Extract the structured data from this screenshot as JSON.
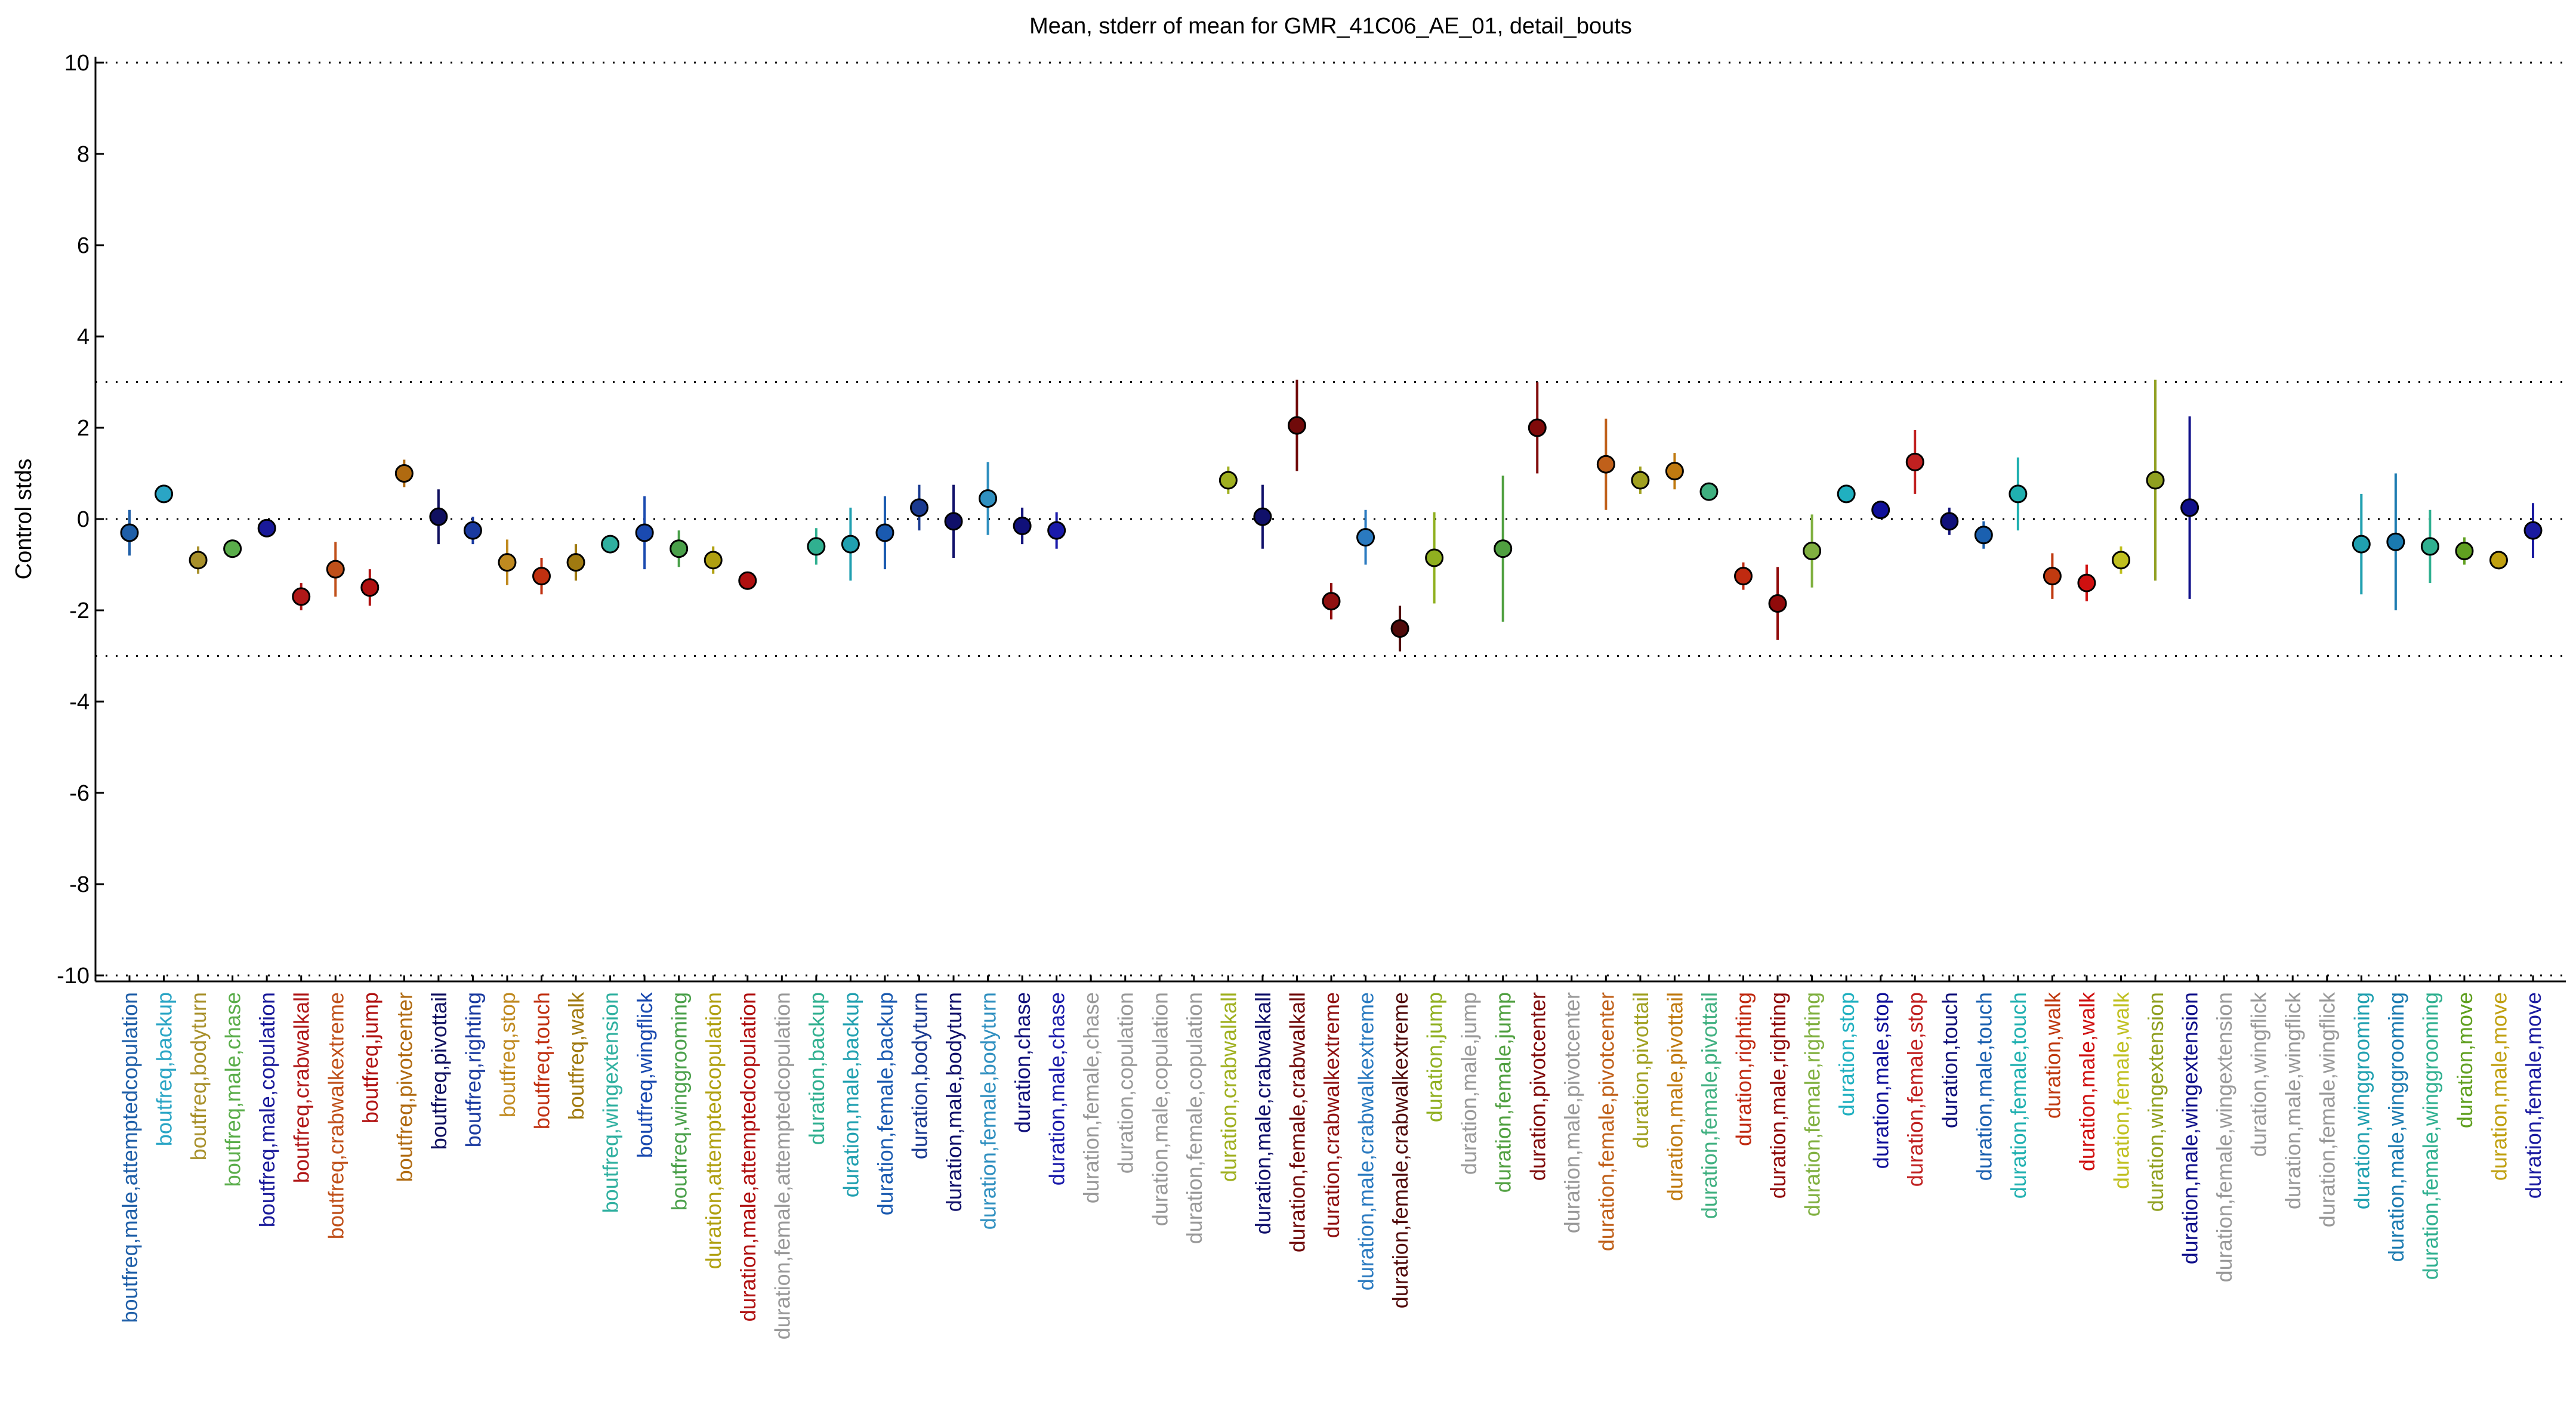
{
  "chart_data": {
    "type": "errorbar",
    "title": "Mean, stderr of mean for GMR_41C06_AE_01, detail_bouts",
    "ylabel": "Control stds",
    "ylim": [
      -10,
      10
    ],
    "yticks": [
      -10,
      -8,
      -6,
      -4,
      -2,
      0,
      2,
      4,
      6,
      8,
      10
    ],
    "reference_lines": [
      -10,
      -3,
      0,
      3,
      10
    ],
    "categories": [
      "boutfreq,male,attemptedcopulation",
      "boutfreq,backup",
      "boutfreq,bodyturn",
      "boutfreq,male,chase",
      "boutfreq,male,copulation",
      "boutfreq,crabwalkall",
      "boutfreq,crabwalkextreme",
      "boutfreq,jump",
      "boutfreq,pivotcenter",
      "boutfreq,pivottail",
      "boutfreq,righting",
      "boutfreq,stop",
      "boutfreq,touch",
      "boutfreq,walk",
      "boutfreq,wingextension",
      "boutfreq,wingflick",
      "boutfreq,winggrooming",
      "duration,attemptedcopulation",
      "duration,male,attemptedcopulation",
      "duration,female,attemptedcopulation",
      "duration,backup",
      "duration,male,backup",
      "duration,female,backup",
      "duration,bodyturn",
      "duration,male,bodyturn",
      "duration,female,bodyturn",
      "duration,chase",
      "duration,male,chase",
      "duration,female,chase",
      "duration,copulation",
      "duration,male,copulation",
      "duration,female,copulation",
      "duration,crabwalkall",
      "duration,male,crabwalkall",
      "duration,female,crabwalkall",
      "duration,crabwalkextreme",
      "duration,male,crabwalkextreme",
      "duration,female,crabwalkextreme",
      "duration,jump",
      "duration,male,jump",
      "duration,female,jump",
      "duration,pivotcenter",
      "duration,male,pivotcenter",
      "duration,female,pivotcenter",
      "duration,pivottail",
      "duration,male,pivottail",
      "duration,female,pivottail",
      "duration,righting",
      "duration,male,righting",
      "duration,female,righting",
      "duration,stop",
      "duration,male,stop",
      "duration,female,stop",
      "duration,touch",
      "duration,male,touch",
      "duration,female,touch",
      "duration,walk",
      "duration,male,walk",
      "duration,female,walk",
      "duration,wingextension",
      "duration,male,wingextension",
      "duration,female,wingextension",
      "duration,wingflick",
      "duration,male,wingflick",
      "duration,female,wingflick",
      "duration,winggrooming",
      "duration,male,winggrooming",
      "duration,female,winggrooming",
      "duration,move",
      "duration,male,move",
      "duration,female,move"
    ],
    "values": [
      -0.3,
      0.55,
      -0.9,
      -0.65,
      -0.2,
      -1.7,
      -1.1,
      -1.5,
      1.0,
      0.05,
      -0.25,
      -0.95,
      -1.25,
      -0.95,
      -0.55,
      -0.3,
      -0.65,
      -0.9,
      -1.35,
      null,
      -0.6,
      -0.55,
      -0.3,
      0.25,
      -0.05,
      0.45,
      -0.15,
      -0.25,
      null,
      null,
      null,
      null,
      0.85,
      0.05,
      2.05,
      -1.8,
      -0.4,
      -2.4,
      -0.85,
      null,
      -0.65,
      2.0,
      null,
      1.2,
      0.85,
      1.05,
      0.6,
      -1.25,
      -1.85,
      -0.7,
      0.55,
      0.2,
      1.25,
      -0.05,
      -0.35,
      0.55,
      -1.25,
      -1.4,
      -0.9,
      0.85,
      0.25,
      null,
      null,
      null,
      null,
      -0.55,
      -0.5,
      -0.6,
      -0.7,
      -0.9,
      -0.25
    ],
    "errors": [
      0.5,
      0.2,
      0.3,
      0.2,
      0.1,
      0.3,
      0.6,
      0.4,
      0.3,
      0.6,
      0.3,
      0.5,
      0.4,
      0.4,
      0.2,
      0.8,
      0.4,
      0.3,
      0,
      null,
      0.4,
      0.8,
      0.8,
      0.5,
      0.8,
      0.8,
      0.4,
      0.4,
      null,
      null,
      null,
      null,
      0.3,
      0.7,
      1.0,
      0.4,
      0.6,
      0.5,
      1.0,
      null,
      1.6,
      1.0,
      null,
      1.0,
      0.3,
      0.4,
      0.2,
      0.3,
      0.8,
      0.8,
      0.2,
      0.1,
      0.7,
      0.3,
      0.3,
      0.8,
      0.5,
      0.4,
      0.3,
      2.2,
      2.0,
      null,
      null,
      null,
      null,
      1.1,
      1.5,
      0.8,
      0.3,
      0.2,
      0.6
    ],
    "colors": [
      "#1f5fa8",
      "#2aa5c5",
      "#a8902a",
      "#5aad4a",
      "#1a1a9a",
      "#b01818",
      "#c0501a",
      "#b01010",
      "#b06a10",
      "#101060",
      "#1a3aa0",
      "#c08a20",
      "#c03010",
      "#a07a10",
      "#30b0a0",
      "#1a4ab0",
      "#4aa04a",
      "#b0a010",
      "#b01010",
      "#999999",
      "#30b090",
      "#20a0b0",
      "#1a5ab0",
      "#1a3a90",
      "#10106a",
      "#3090c0",
      "#10107a",
      "#1a1aaa",
      "#999999",
      "#999999",
      "#999999",
      "#999999",
      "#a0b020",
      "#10106a",
      "#700a0a",
      "#901010",
      "#2a7ac0",
      "#500a0a",
      "#90b020",
      "#999999",
      "#50a040",
      "#800a0a",
      "#999999",
      "#c0601a",
      "#a0a020",
      "#c07a10",
      "#40b080",
      "#c02a10",
      "#900a0a",
      "#80b040",
      "#20b0c0",
      "#10109a",
      "#c02020",
      "#10107a",
      "#1a60b0",
      "#20b0b0",
      "#c03a10",
      "#d01010",
      "#c0c020",
      "#90a020",
      "#10108a",
      "#999999",
      "#999999",
      "#999999",
      "#999999",
      "#20a0b0",
      "#1a7ab0",
      "#30b090",
      "#60a020",
      "#c0a010",
      "#1a1aa0"
    ]
  }
}
